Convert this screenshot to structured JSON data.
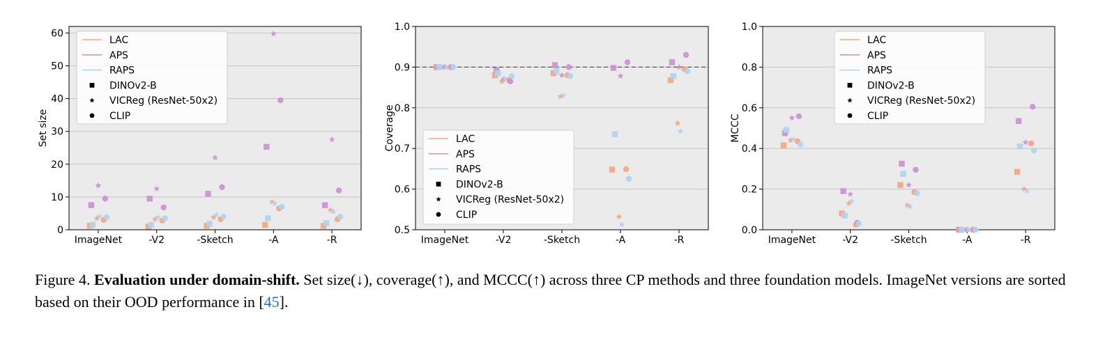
{
  "legend": {
    "methods": [
      {
        "name": "LAC",
        "color": "#f4a582"
      },
      {
        "name": "APS",
        "color": "#c993cf"
      },
      {
        "name": "RAPS",
        "color": "#aed4f0"
      }
    ],
    "models": [
      {
        "name": "DINOv2-B",
        "marker": "square"
      },
      {
        "name": "VICReg (ResNet-50x2)",
        "marker": "star"
      },
      {
        "name": "CLIP",
        "marker": "circle"
      }
    ]
  },
  "chart_data": [
    {
      "type": "scatter",
      "ylabel": "Set size",
      "ylim": [
        0,
        62
      ],
      "yticks": [
        "0",
        "10",
        "20",
        "30",
        "40",
        "50",
        "60"
      ],
      "categories": [
        "ImageNet",
        "-V2",
        "-Sketch",
        "-A",
        "-R"
      ],
      "grid": true,
      "legend_position": "upper-left",
      "series": [
        {
          "method": "LAC",
          "model": "DINOv2-B",
          "values": [
            1.2,
            1.0,
            1.2,
            1.5,
            1.2
          ]
        },
        {
          "method": "LAC",
          "model": "VICReg (ResNet-50x2)",
          "values": [
            3.5,
            3.2,
            3.8,
            8.5,
            6.0
          ]
        },
        {
          "method": "LAC",
          "model": "CLIP",
          "values": [
            3.0,
            2.8,
            3.2,
            6.5,
            3.2
          ]
        },
        {
          "method": "APS",
          "model": "DINOv2-B",
          "values": [
            7.5,
            9.5,
            11.0,
            25.3,
            7.5
          ]
        },
        {
          "method": "APS",
          "model": "VICReg (ResNet-50x2)",
          "values": [
            13.5,
            12.5,
            22.0,
            59.8,
            27.5
          ]
        },
        {
          "method": "APS",
          "model": "CLIP",
          "values": [
            9.5,
            6.8,
            13.0,
            39.5,
            12.0
          ]
        },
        {
          "method": "RAPS",
          "model": "DINOv2-B",
          "values": [
            1.5,
            1.5,
            1.8,
            3.5,
            2.0
          ]
        },
        {
          "method": "RAPS",
          "model": "VICReg (ResNet-50x2)",
          "values": [
            4.0,
            3.8,
            4.5,
            8.0,
            5.5
          ]
        },
        {
          "method": "RAPS",
          "model": "CLIP",
          "values": [
            3.8,
            3.5,
            4.0,
            7.0,
            4.0
          ]
        }
      ]
    },
    {
      "type": "scatter",
      "ylabel": "Coverage",
      "ylim": [
        0.5,
        1.0
      ],
      "yticks": [
        "0.5",
        "0.6",
        "0.7",
        "0.8",
        "0.9",
        "1.0"
      ],
      "categories": [
        "ImageNet",
        "-V2",
        "-Sketch",
        "-A",
        "-R"
      ],
      "reference_line": 0.9,
      "grid": true,
      "legend_position": "lower-left",
      "series": [
        {
          "method": "LAC",
          "model": "DINOv2-B",
          "values": [
            0.9,
            0.88,
            0.885,
            0.648,
            0.868
          ]
        },
        {
          "method": "LAC",
          "model": "VICReg (ResNet-50x2)",
          "values": [
            0.9,
            0.865,
            0.828,
            0.532,
            0.762
          ]
        },
        {
          "method": "LAC",
          "model": "CLIP",
          "values": [
            0.9,
            0.868,
            0.88,
            0.649,
            0.895
          ]
        },
        {
          "method": "APS",
          "model": "DINOv2-B",
          "values": [
            0.9,
            0.892,
            0.905,
            0.898,
            0.912
          ]
        },
        {
          "method": "APS",
          "model": "VICReg (ResNet-50x2)",
          "values": [
            0.9,
            0.87,
            0.88,
            0.878,
            0.9
          ]
        },
        {
          "method": "APS",
          "model": "CLIP",
          "values": [
            0.9,
            0.865,
            0.9,
            0.912,
            0.93
          ]
        },
        {
          "method": "RAPS",
          "model": "DINOv2-B",
          "values": [
            0.9,
            0.885,
            0.89,
            0.735,
            0.878
          ]
        },
        {
          "method": "RAPS",
          "model": "VICReg (ResNet-50x2)",
          "values": [
            0.9,
            0.872,
            0.83,
            0.513,
            0.742
          ]
        },
        {
          "method": "RAPS",
          "model": "CLIP",
          "values": [
            0.9,
            0.878,
            0.878,
            0.625,
            0.89
          ]
        }
      ]
    },
    {
      "type": "scatter",
      "ylabel": "MCCC",
      "ylim": [
        0.0,
        1.0
      ],
      "yticks": [
        "0.0",
        "0.2",
        "0.4",
        "0.6",
        "0.8",
        "1.0"
      ],
      "categories": [
        "ImageNet",
        "-V2",
        "-Sketch",
        "-A",
        "-R"
      ],
      "grid": true,
      "legend_position": "upper-center",
      "series": [
        {
          "method": "LAC",
          "model": "DINOv2-B",
          "values": [
            0.415,
            0.08,
            0.22,
            0.0,
            0.285
          ]
        },
        {
          "method": "LAC",
          "model": "VICReg (ResNet-50x2)",
          "values": [
            0.44,
            0.13,
            0.12,
            0.0,
            0.2
          ]
        },
        {
          "method": "LAC",
          "model": "CLIP",
          "values": [
            0.435,
            0.025,
            0.185,
            0.0,
            0.425
          ]
        },
        {
          "method": "APS",
          "model": "DINOv2-B",
          "values": [
            0.475,
            0.19,
            0.325,
            0.0,
            0.535
          ]
        },
        {
          "method": "APS",
          "model": "VICReg (ResNet-50x2)",
          "values": [
            0.55,
            0.175,
            0.22,
            0.0,
            0.43
          ]
        },
        {
          "method": "APS",
          "model": "CLIP",
          "values": [
            0.558,
            0.035,
            0.295,
            0.0,
            0.605
          ]
        },
        {
          "method": "RAPS",
          "model": "DINOv2-B",
          "values": [
            0.49,
            0.07,
            0.275,
            0.0,
            0.41
          ]
        },
        {
          "method": "RAPS",
          "model": "VICReg (ResNet-50x2)",
          "values": [
            0.445,
            0.14,
            0.115,
            0.0,
            0.19
          ]
        },
        {
          "method": "RAPS",
          "model": "CLIP",
          "values": [
            0.42,
            0.03,
            0.18,
            0.0,
            0.39
          ]
        }
      ]
    }
  ],
  "caption": {
    "prefix": "Figure 4. ",
    "title": "Evaluation under domain-shift.",
    "body": " Set size(↓), coverage(↑), and MCCC(↑) across three CP methods and three foundation models. ImageNet versions are sorted based on their OOD performance in [",
    "ref": "45",
    "suffix": "]."
  }
}
